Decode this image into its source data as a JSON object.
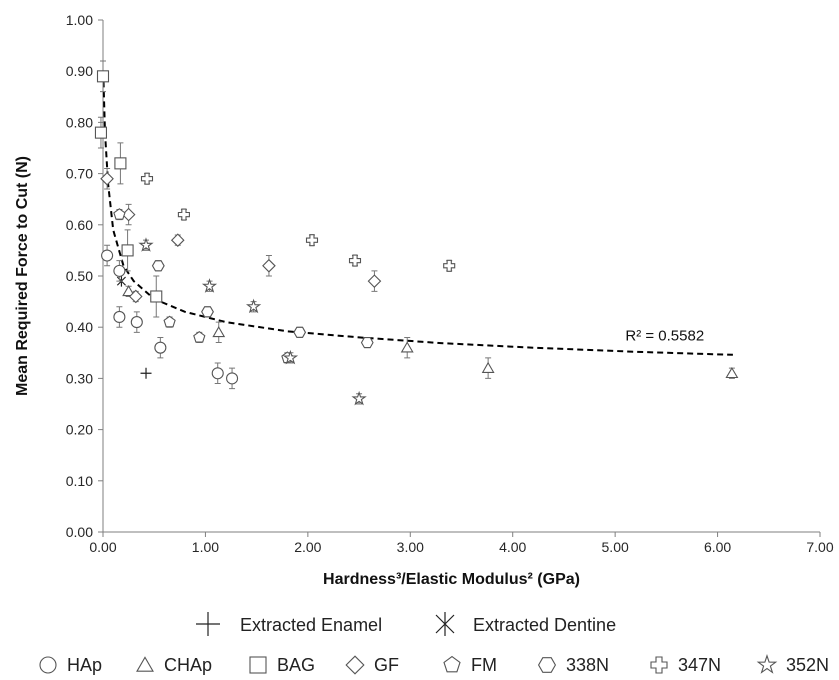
{
  "chart_data": {
    "type": "scatter",
    "xlabel": "Hardness³/Elastic Modulus² (GPa)",
    "ylabel": "Mean Required Force to Cut (N)",
    "xlim": [
      0,
      7
    ],
    "ylim": [
      0,
      1
    ],
    "xticks": [
      "0.00",
      "1.00",
      "2.00",
      "3.00",
      "4.00",
      "5.00",
      "6.00",
      "7.00"
    ],
    "yticks": [
      "0.00",
      "0.10",
      "0.20",
      "0.30",
      "0.40",
      "0.50",
      "0.60",
      "0.70",
      "0.80",
      "0.90",
      "1.00"
    ],
    "grid": false,
    "legend_position": "bottom",
    "trendline": {
      "type": "power",
      "style": "dashed",
      "x": [
        0.005,
        0.02,
        0.05,
        0.1,
        0.2,
        0.3,
        0.5,
        0.8,
        1.2,
        1.8,
        2.5,
        3.3,
        4.2,
        5.2,
        6.15
      ],
      "y": [
        0.88,
        0.78,
        0.68,
        0.59,
        0.52,
        0.49,
        0.455,
        0.43,
        0.41,
        0.392,
        0.38,
        0.369,
        0.36,
        0.352,
        0.346
      ],
      "annotation": "R² = 0.5582"
    },
    "series": [
      {
        "name": "Extracted Enamel",
        "marker": "plus",
        "points": [
          {
            "x": 0.42,
            "y": 0.31,
            "e": 0
          }
        ]
      },
      {
        "name": "Extracted Dentine",
        "marker": "asterisk",
        "points": [
          {
            "x": 0.18,
            "y": 0.49,
            "e": 0
          }
        ]
      },
      {
        "name": "HAp",
        "marker": "circle",
        "points": [
          {
            "x": 0.04,
            "y": 0.54,
            "e": 0.02
          },
          {
            "x": 0.16,
            "y": 0.51,
            "e": 0.02
          },
          {
            "x": 0.16,
            "y": 0.42,
            "e": 0.02
          },
          {
            "x": 0.33,
            "y": 0.41,
            "e": 0.02
          },
          {
            "x": 0.56,
            "y": 0.36,
            "e": 0.02
          },
          {
            "x": 1.12,
            "y": 0.31,
            "e": 0.02
          },
          {
            "x": 1.26,
            "y": 0.3,
            "e": 0.02
          }
        ]
      },
      {
        "name": "CHAp",
        "marker": "triangle",
        "points": [
          {
            "x": 0.25,
            "y": 0.47,
            "e": 0.01
          },
          {
            "x": 1.13,
            "y": 0.39,
            "e": 0.02
          },
          {
            "x": 2.97,
            "y": 0.36,
            "e": 0.02
          },
          {
            "x": 3.76,
            "y": 0.32,
            "e": 0.02
          },
          {
            "x": 6.14,
            "y": 0.31,
            "e": 0.01
          }
        ]
      },
      {
        "name": "BAG",
        "marker": "square",
        "points": [
          {
            "x": 0.0,
            "y": 0.89,
            "e": 0.03
          },
          {
            "x": -0.02,
            "y": 0.78,
            "e": 0.03
          },
          {
            "x": 0.17,
            "y": 0.72,
            "e": 0.04
          },
          {
            "x": 0.24,
            "y": 0.55,
            "e": 0.04
          },
          {
            "x": 0.52,
            "y": 0.46,
            "e": 0.04
          }
        ]
      },
      {
        "name": "GF",
        "marker": "diamond",
        "points": [
          {
            "x": 0.04,
            "y": 0.69,
            "e": 0.02
          },
          {
            "x": 0.25,
            "y": 0.62,
            "e": 0.02
          },
          {
            "x": 0.32,
            "y": 0.46,
            "e": 0.01
          },
          {
            "x": 0.73,
            "y": 0.57,
            "e": 0.01
          },
          {
            "x": 1.62,
            "y": 0.52,
            "e": 0.02
          },
          {
            "x": 2.65,
            "y": 0.49,
            "e": 0.02
          }
        ]
      },
      {
        "name": "FM",
        "marker": "pentagon",
        "points": [
          {
            "x": 0.16,
            "y": 0.62,
            "e": 0.01
          },
          {
            "x": 0.65,
            "y": 0.41,
            "e": 0.01
          },
          {
            "x": 0.94,
            "y": 0.38,
            "e": 0.01
          },
          {
            "x": 1.8,
            "y": 0.34,
            "e": 0.01
          }
        ]
      },
      {
        "name": "338N",
        "marker": "hexagon",
        "points": [
          {
            "x": 0.54,
            "y": 0.52,
            "e": 0.01
          },
          {
            "x": 1.02,
            "y": 0.43,
            "e": 0.01
          },
          {
            "x": 1.92,
            "y": 0.39,
            "e": 0.01
          },
          {
            "x": 2.58,
            "y": 0.37,
            "e": 0.01
          }
        ]
      },
      {
        "name": "347N",
        "marker": "cross",
        "points": [
          {
            "x": 0.43,
            "y": 0.69,
            "e": 0.01
          },
          {
            "x": 0.79,
            "y": 0.62,
            "e": 0.01
          },
          {
            "x": 2.04,
            "y": 0.57,
            "e": 0.01
          },
          {
            "x": 2.46,
            "y": 0.53,
            "e": 0.01
          },
          {
            "x": 3.38,
            "y": 0.52,
            "e": 0.01
          }
        ]
      },
      {
        "name": "352N",
        "marker": "star",
        "points": [
          {
            "x": 0.42,
            "y": 0.56,
            "e": 0.01
          },
          {
            "x": 1.04,
            "y": 0.48,
            "e": 0.01
          },
          {
            "x": 1.47,
            "y": 0.44,
            "e": 0.01
          },
          {
            "x": 1.83,
            "y": 0.34,
            "e": 0.01
          },
          {
            "x": 2.5,
            "y": 0.26,
            "e": 0.01
          }
        ]
      }
    ],
    "legend_rows": [
      [
        "Extracted Enamel",
        "Extracted Dentine"
      ],
      [
        "HAp",
        "CHAp",
        "BAG",
        "GF",
        "FM",
        "338N",
        "347N",
        "352N"
      ]
    ]
  }
}
